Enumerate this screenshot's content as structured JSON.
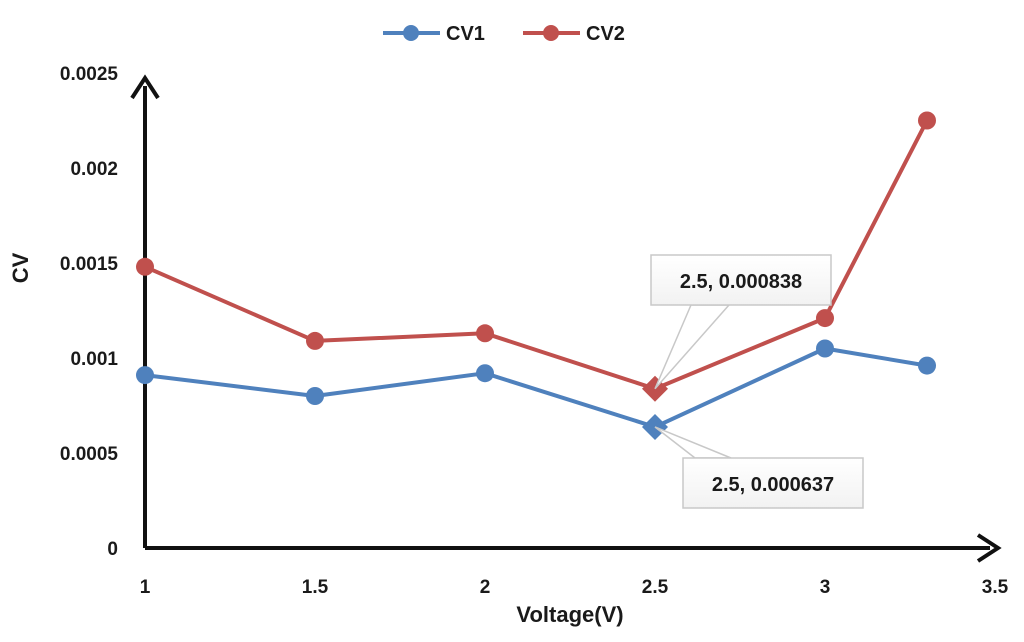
{
  "chart_data": {
    "type": "line",
    "title": "",
    "xlabel": "Voltage(V)",
    "ylabel": "CV",
    "xlim": [
      1,
      3.5
    ],
    "ylim": [
      0,
      0.0025
    ],
    "x_ticks": [
      "1",
      "1.5",
      "2",
      "2.5",
      "3",
      "3.5"
    ],
    "y_ticks": [
      "0",
      "0.0005",
      "0.001",
      "0.0015",
      "0.002",
      "0.0025"
    ],
    "legend_position": "top-center",
    "grid": false,
    "series": [
      {
        "name": "CV1",
        "color": "#4f81bd",
        "x": [
          1,
          1.5,
          2,
          2.5,
          3,
          3.3
        ],
        "values": [
          0.00091,
          0.0008,
          0.00092,
          0.000637,
          0.00105,
          0.00096
        ],
        "highlight_index": 3,
        "annotation": "2.5, 0.000637"
      },
      {
        "name": "CV2",
        "color": "#c0504d",
        "x": [
          1,
          1.5,
          2,
          2.5,
          3,
          3.3
        ],
        "values": [
          0.00148,
          0.00109,
          0.00113,
          0.000838,
          0.00121,
          0.00225
        ],
        "highlight_index": 3,
        "annotation": "2.5, 0.000838"
      }
    ]
  }
}
